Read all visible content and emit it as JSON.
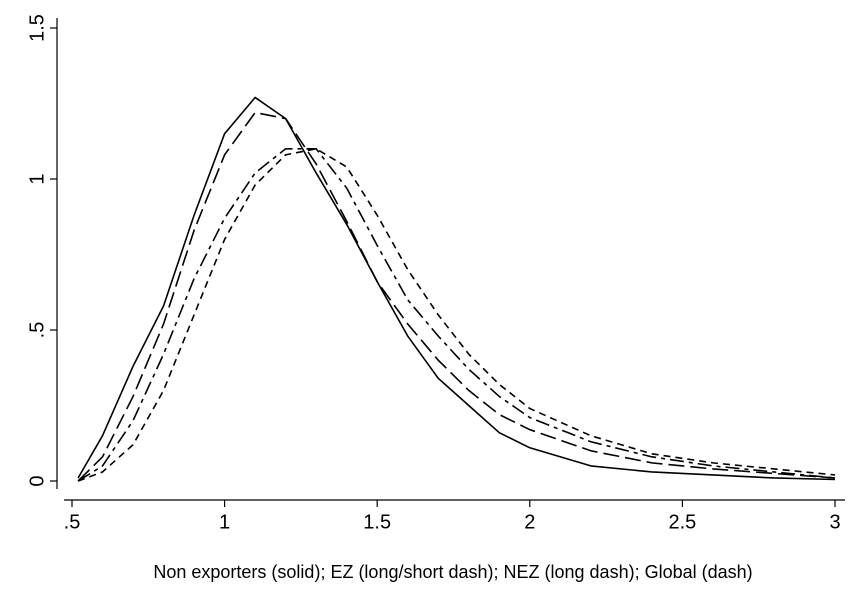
{
  "chart_data": {
    "type": "line",
    "xlabel": "Non exporters (solid); EZ (long/short dash); NEZ (long dash); Global (dash)",
    "x": [
      0.52,
      0.6,
      0.7,
      0.8,
      0.9,
      1.0,
      1.1,
      1.2,
      1.3,
      1.4,
      1.5,
      1.6,
      1.7,
      1.8,
      1.9,
      2.0,
      2.2,
      2.4,
      2.6,
      2.8,
      3.0
    ],
    "series": [
      {
        "color": "#000000",
        "dash": "solid",
        "values": [
          0.01,
          0.15,
          0.38,
          0.58,
          0.88,
          1.15,
          1.27,
          1.2,
          1.02,
          0.85,
          0.66,
          0.48,
          0.34,
          0.25,
          0.16,
          0.11,
          0.05,
          0.03,
          0.02,
          0.01,
          0.005
        ]
      },
      {
        "color": "#000000",
        "dash": "longshort",
        "values": [
          0.0,
          0.05,
          0.2,
          0.42,
          0.67,
          0.87,
          1.02,
          1.1,
          1.1,
          0.97,
          0.78,
          0.6,
          0.48,
          0.37,
          0.28,
          0.21,
          0.13,
          0.08,
          0.05,
          0.03,
          0.01
        ]
      },
      {
        "color": "#000000",
        "dash": "long",
        "values": [
          0.0,
          0.08,
          0.28,
          0.52,
          0.83,
          1.08,
          1.22,
          1.2,
          1.05,
          0.86,
          0.66,
          0.52,
          0.4,
          0.3,
          0.22,
          0.17,
          0.1,
          0.06,
          0.04,
          0.025,
          0.01
        ]
      },
      {
        "color": "#000000",
        "dash": "dash",
        "values": [
          0.0,
          0.03,
          0.12,
          0.3,
          0.55,
          0.8,
          0.98,
          1.08,
          1.1,
          1.04,
          0.88,
          0.7,
          0.55,
          0.42,
          0.32,
          0.24,
          0.15,
          0.09,
          0.06,
          0.04,
          0.02
        ]
      }
    ],
    "xlim": [
      0.5,
      3
    ],
    "xticks": [
      {
        "value": 0.5,
        "label": ".5"
      },
      1,
      1.5,
      2,
      2.5,
      3
    ],
    "ylim": [
      0,
      1.5
    ],
    "yticks": [
      0,
      {
        "value": 0.5,
        "label": ".5"
      },
      1,
      1.5
    ],
    "grid": false
  }
}
